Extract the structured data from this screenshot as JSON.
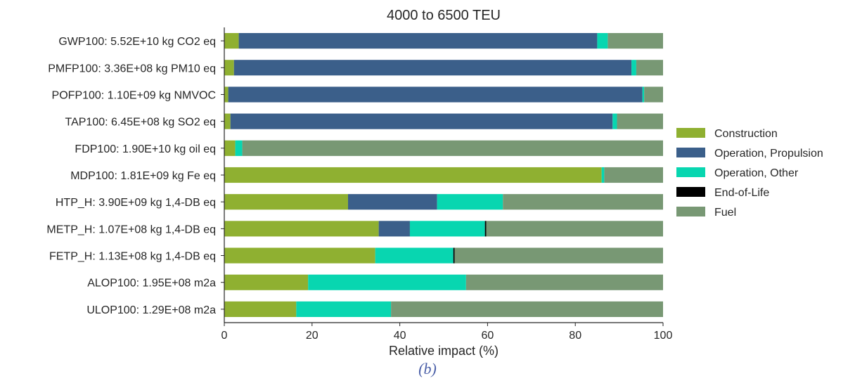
{
  "chart_data": {
    "type": "bar",
    "orientation": "horizontal",
    "stacked": true,
    "title": "4000 to 6500 TEU",
    "xlabel": "Relative impact (%)",
    "ylabel": "",
    "xlim": [
      0,
      100
    ],
    "xticks": [
      0,
      20,
      40,
      60,
      80,
      100
    ],
    "grid": false,
    "legend_position": "right",
    "categories": [
      "GWP100: 5.52E+10 kg CO2 eq",
      "PMFP100: 3.36E+08 kg PM10 eq",
      "POFP100: 1.10E+09 kg NMVOC",
      "TAP100: 6.45E+08 kg SO2 eq",
      "FDP100: 1.90E+10 kg oil eq",
      "MDP100: 1.81E+09 kg Fe eq",
      "HTP_H: 3.90E+09 kg 1,4-DB eq",
      "METP_H: 1.07E+08 kg 1,4-DB eq",
      "FETP_H: 1.13E+08 kg 1,4-DB eq",
      "ALOP100: 1.95E+08 m2a",
      "ULOP100: 1.29E+08 m2a"
    ],
    "series": [
      {
        "name": "Construction",
        "color": "#8fb031",
        "values": [
          3.3,
          2.2,
          0.9,
          1.4,
          2.5,
          86.0,
          28.2,
          35.2,
          34.4,
          19.1,
          16.4
        ]
      },
      {
        "name": "Operation, Propulsion",
        "color": "#3b5f8a",
        "values": [
          81.7,
          90.6,
          94.4,
          87.1,
          0.0,
          0.0,
          20.3,
          7.1,
          0.0,
          0.0,
          0.0
        ]
      },
      {
        "name": "Operation, Other",
        "color": "#08d6b0",
        "values": [
          2.4,
          1.1,
          0.4,
          1.0,
          1.6,
          0.6,
          15.0,
          17.1,
          17.8,
          36.0,
          21.6
        ]
      },
      {
        "name": "End-of-Life",
        "color": "#000000",
        "values": [
          0.0,
          0.0,
          0.0,
          0.0,
          0.0,
          0.0,
          0.0,
          0.3,
          0.3,
          0.0,
          0.0
        ]
      },
      {
        "name": "Fuel",
        "color": "#789874",
        "values": [
          12.6,
          6.1,
          4.3,
          10.5,
          95.9,
          13.4,
          36.5,
          40.3,
          47.5,
          44.9,
          62.0
        ]
      }
    ]
  },
  "caption": "(b)"
}
